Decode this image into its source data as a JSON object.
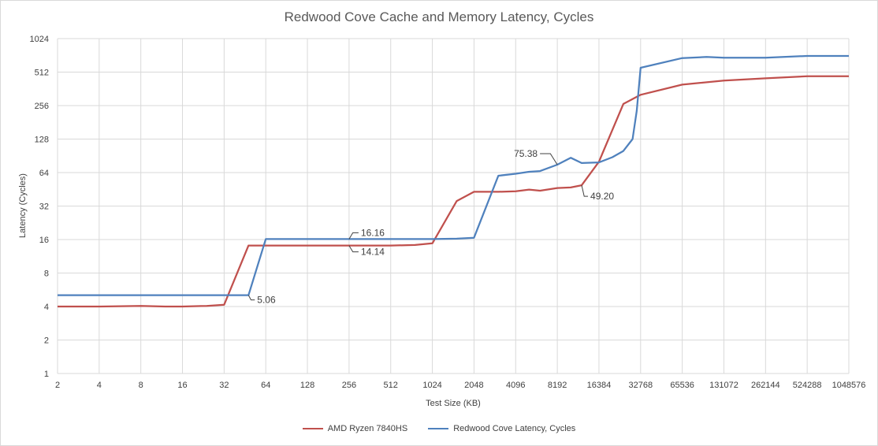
{
  "chart_data": {
    "type": "line",
    "title": "Redwood Cove Cache and Memory Latency, Cycles",
    "xlabel": "Test Size (KB)",
    "ylabel": "Latency (Cycles)",
    "x_scale": "log2",
    "y_scale": "log2",
    "xlim": [
      2,
      1048576
    ],
    "ylim": [
      1,
      1024
    ],
    "x_ticks": [
      "2",
      "4",
      "8",
      "16",
      "32",
      "64",
      "128",
      "256",
      "512",
      "1024",
      "2048",
      "4096",
      "8192",
      "16384",
      "32768",
      "65536",
      "131072",
      "262144",
      "524288",
      "1048576"
    ],
    "y_ticks": [
      "1",
      "2",
      "4",
      "8",
      "16",
      "32",
      "64",
      "128",
      "256",
      "512",
      "1024"
    ],
    "grid": true,
    "legend_position": "bottom",
    "series": [
      {
        "name": "AMD Ryzen 7840HS",
        "color": "#c0504d",
        "points": [
          [
            2,
            4.0
          ],
          [
            4,
            4.0
          ],
          [
            8,
            4.05
          ],
          [
            12,
            4.0
          ],
          [
            16,
            4.0
          ],
          [
            24,
            4.05
          ],
          [
            32,
            4.15
          ],
          [
            48,
            14.14
          ],
          [
            64,
            14.14
          ],
          [
            128,
            14.14
          ],
          [
            256,
            14.14
          ],
          [
            512,
            14.14
          ],
          [
            768,
            14.3
          ],
          [
            1024,
            14.8
          ],
          [
            1536,
            35.5
          ],
          [
            2048,
            43
          ],
          [
            3072,
            43
          ],
          [
            4096,
            43.5
          ],
          [
            5120,
            45
          ],
          [
            6144,
            44
          ],
          [
            8192,
            46.5
          ],
          [
            10240,
            47
          ],
          [
            12288,
            49.2
          ],
          [
            16384,
            80
          ],
          [
            24576,
            265
          ],
          [
            32768,
            320
          ],
          [
            65536,
            395
          ],
          [
            131072,
            430
          ],
          [
            262144,
            450
          ],
          [
            524288,
            470
          ],
          [
            1048576,
            470
          ]
        ]
      },
      {
        "name": "Redwood Cove Latency, Cycles",
        "color": "#4f81bd",
        "points": [
          [
            2,
            5.06
          ],
          [
            4,
            5.06
          ],
          [
            8,
            5.06
          ],
          [
            16,
            5.06
          ],
          [
            32,
            5.06
          ],
          [
            48,
            5.06
          ],
          [
            64,
            16.16
          ],
          [
            128,
            16.16
          ],
          [
            256,
            16.16
          ],
          [
            512,
            16.16
          ],
          [
            1024,
            16.16
          ],
          [
            1536,
            16.3
          ],
          [
            2048,
            16.6
          ],
          [
            3072,
            60
          ],
          [
            4096,
            62.5
          ],
          [
            5120,
            65
          ],
          [
            6144,
            66
          ],
          [
            8192,
            75.38
          ],
          [
            10240,
            87
          ],
          [
            12288,
            78
          ],
          [
            16384,
            79
          ],
          [
            20480,
            88
          ],
          [
            24576,
            100
          ],
          [
            28672,
            128
          ],
          [
            30720,
            230
          ],
          [
            32768,
            560
          ],
          [
            65536,
            685
          ],
          [
            98304,
            700
          ],
          [
            131072,
            690
          ],
          [
            262144,
            690
          ],
          [
            524288,
            715
          ],
          [
            1048576,
            715
          ]
        ]
      }
    ],
    "annotations": [
      {
        "text": "5.06",
        "series": 1,
        "x": 48,
        "y": 5.06
      },
      {
        "text": "16.16",
        "series": 1,
        "x": 256,
        "y": 16.16
      },
      {
        "text": "14.14",
        "series": 0,
        "x": 256,
        "y": 14.14
      },
      {
        "text": "75.38",
        "series": 1,
        "x": 8192,
        "y": 75.38
      },
      {
        "text": "49.20",
        "series": 0,
        "x": 12288,
        "y": 49.2
      }
    ]
  }
}
